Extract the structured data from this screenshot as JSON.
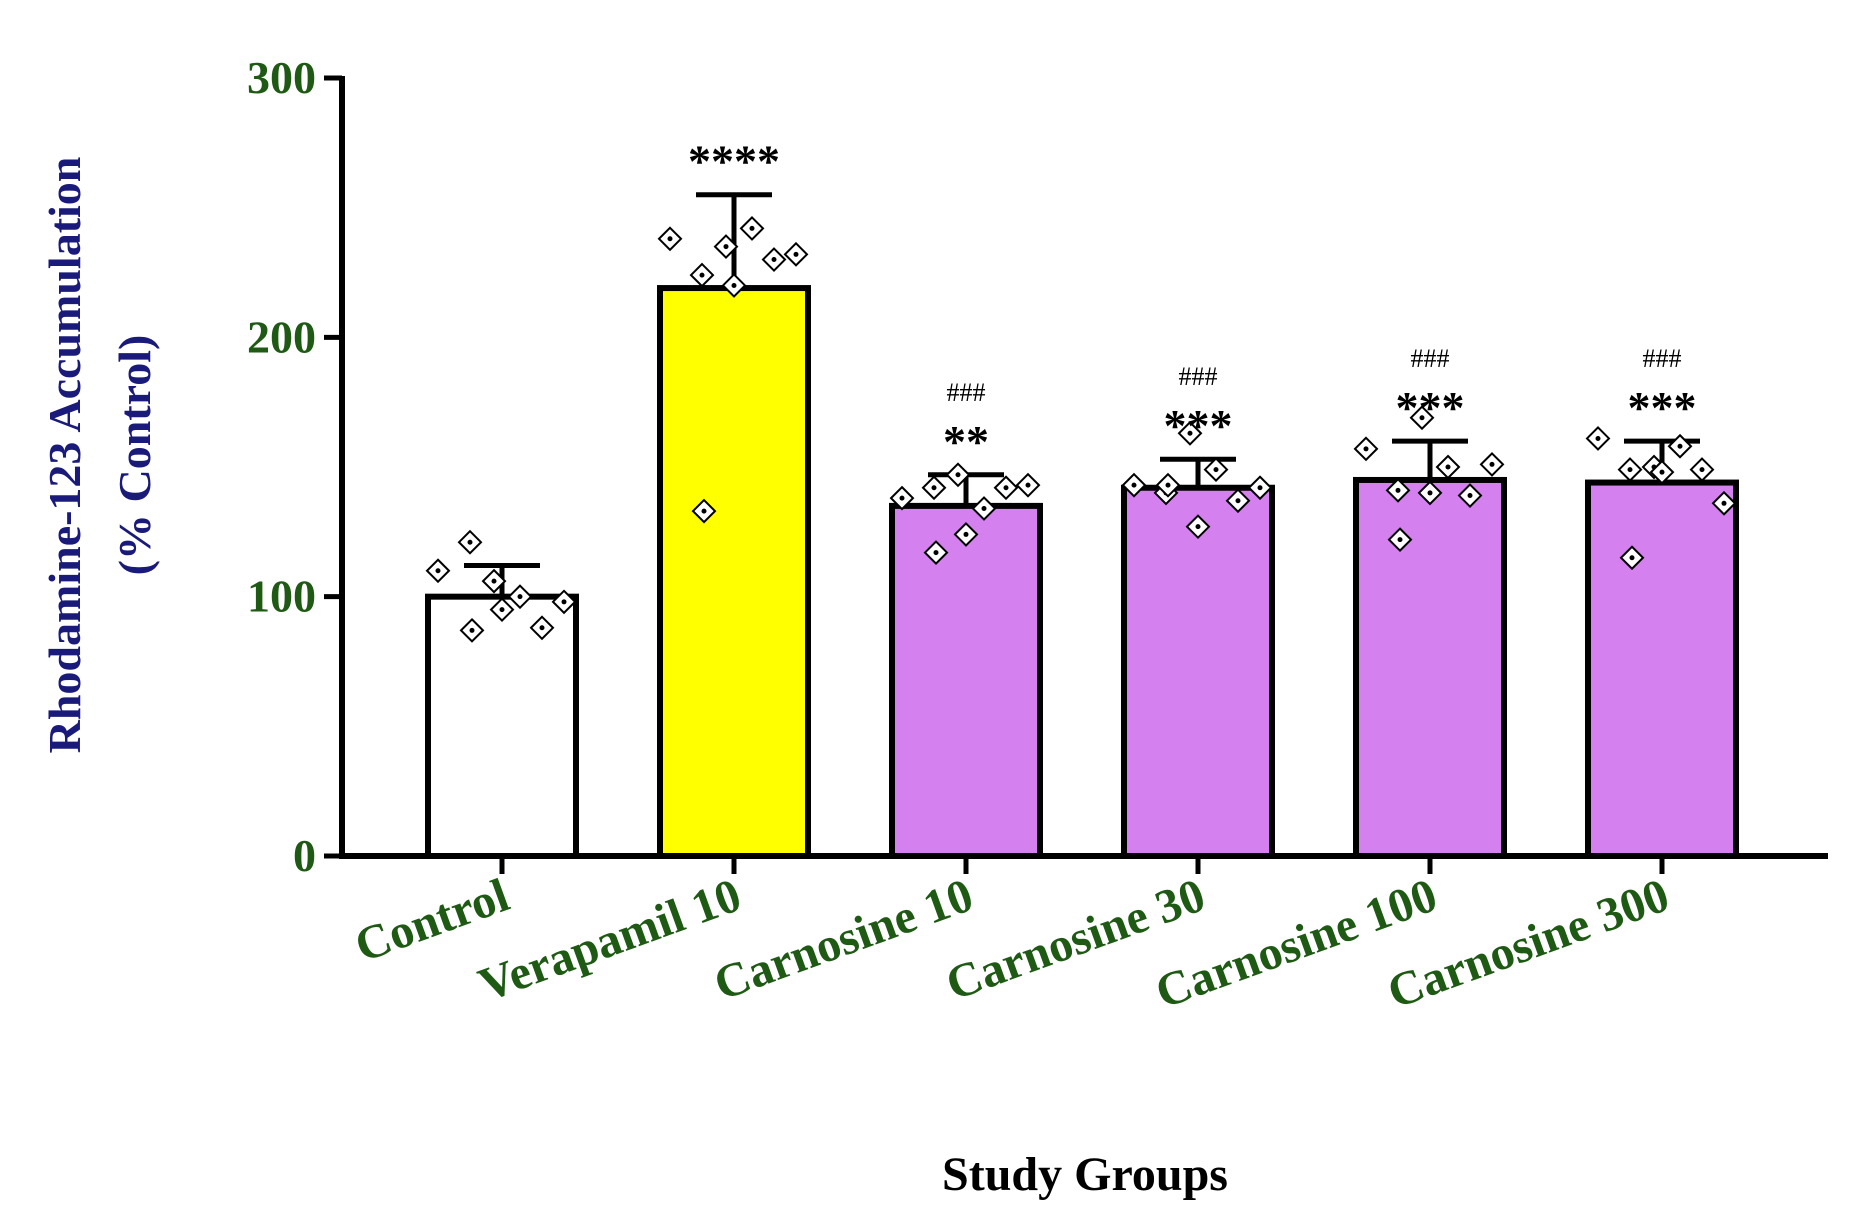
{
  "colors": {
    "tick_label": "#1e5a14",
    "ylabel": "#1a1a7a",
    "control_bar": "#ffffff",
    "verapamil_bar": "#ffff00",
    "carnosine_bar": "#d580ef"
  },
  "chart_data": {
    "type": "bar",
    "title": "",
    "ylabel_line1": "Rhodamine-123 Accumulation",
    "ylabel_line2": "(% Control)",
    "xlabel": "Study Groups",
    "ylim": [
      0,
      300
    ],
    "yticks": [
      0,
      100,
      200,
      300
    ],
    "categories": [
      "Control",
      "Verapamil 10",
      "Carnosine 10",
      "Carnosine 30",
      "Carnosine 100",
      "Carnosine 300"
    ],
    "values": [
      100,
      219,
      135,
      142,
      145,
      144
    ],
    "errors": [
      12,
      36,
      12,
      11,
      15,
      16
    ],
    "bar_colors": [
      "#ffffff",
      "#ffff00",
      "#d580ef",
      "#d580ef",
      "#d580ef",
      "#d580ef"
    ],
    "significance_stars": [
      "",
      "****",
      "**",
      "***",
      "***",
      "***"
    ],
    "significance_hash": [
      "",
      "",
      "###",
      "###",
      "###",
      "###"
    ],
    "points": [
      [
        110,
        121,
        106,
        100,
        88,
        98,
        95,
        87
      ],
      [
        238,
        224,
        235,
        242,
        230,
        232,
        220,
        133
      ],
      [
        138,
        142,
        147,
        134,
        142,
        143,
        124,
        117
      ],
      [
        143,
        140,
        163,
        149,
        137,
        142,
        127,
        143
      ],
      [
        157,
        141,
        169,
        150,
        139,
        151,
        140,
        122
      ],
      [
        161,
        149,
        150,
        158,
        149,
        136,
        148,
        115
      ]
    ]
  }
}
